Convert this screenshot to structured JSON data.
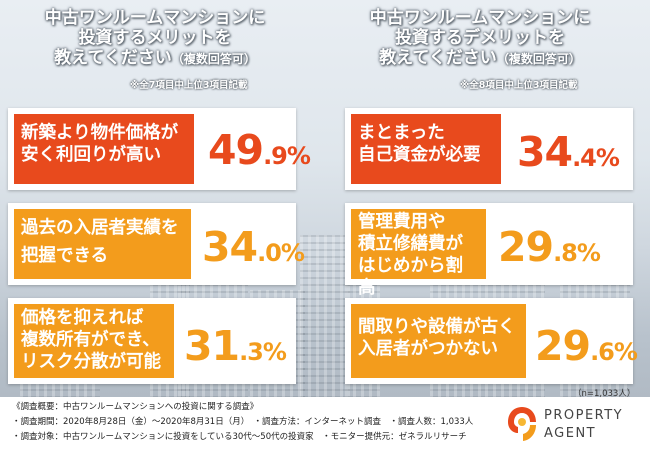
{
  "left": {
    "heading_lines": [
      "中古ワンルームマンションに",
      "投資するメリットを",
      "教えてください"
    ],
    "heading_suffix": "（複数回答可）",
    "note": "※全7項目中上位3項目記載",
    "items": [
      {
        "label_lines": [
          "新築より物件価格が",
          "安く利回りが高い"
        ],
        "pct_int": "49",
        "pct_dec": ".9%"
      },
      {
        "label_lines": [
          "過去の入居者実績を",
          "把握できる"
        ],
        "pct_int": "34",
        "pct_dec": ".0%"
      },
      {
        "label_lines": [
          "価格を抑えれば",
          "複数所有ができ、",
          "リスク分散が可能"
        ],
        "pct_int": "31",
        "pct_dec": ".3%"
      }
    ]
  },
  "right": {
    "heading_lines": [
      "中古ワンルームマンションに",
      "投資するデメリットを",
      "教えてください"
    ],
    "heading_suffix": "（複数回答可）",
    "note": "※全8項目中上位3項目記載",
    "items": [
      {
        "label_lines": [
          "まとまった",
          "自己資金が必要"
        ],
        "pct_int": "34",
        "pct_dec": ".4%"
      },
      {
        "label_lines": [
          "管理費用や",
          "積立修繕費が",
          "はじめから割高"
        ],
        "pct_int": "29",
        "pct_dec": ".8%"
      },
      {
        "label_lines": [
          "間取りや設備が古く",
          "入居者がつかない"
        ],
        "pct_int": "29",
        "pct_dec": ".6%"
      }
    ]
  },
  "sample_size": "（n=1,033人）",
  "footer": {
    "line1": "《調査概要：中古ワンルームマンションへの投資に関する調査》",
    "line2": "・調査期間：2020年8月28日（金）～2020年8月31日（月）　・調査方法：インターネット調査　・調査人数：1,033人",
    "line3": "・調査対象：中古ワンルームマンションに投資をしている30代～50代の投資家　・モニター提供元：ゼネラルリサーチ"
  },
  "logo": {
    "line1": "PROPERTY",
    "line2": "AGENT"
  },
  "colors": {
    "red": "#e84a1d",
    "orange": "#f39c1c"
  }
}
